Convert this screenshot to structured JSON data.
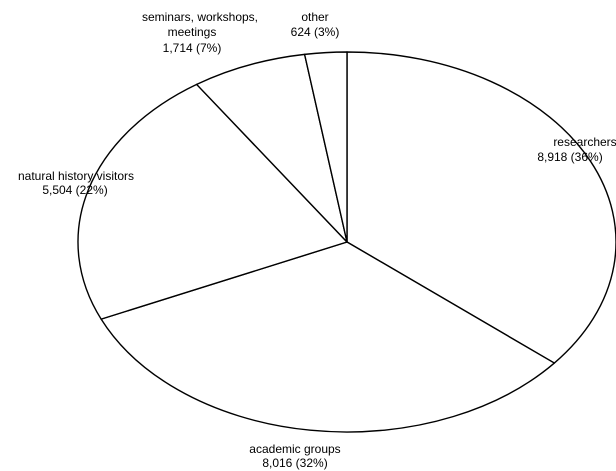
{
  "chart_data": {
    "type": "pie",
    "start_angle_deg": 90,
    "direction": "clockwise",
    "slices": [
      {
        "label": "researchers",
        "value": 8918,
        "value_text": "8,918 (36%)",
        "percent": 36
      },
      {
        "label": "academic groups",
        "value": 8016,
        "value_text": "8,016 (32%)",
        "percent": 32
      },
      {
        "label": "natural history visitors",
        "value": 5504,
        "value_text": "5,504 (22%)",
        "percent": 22
      },
      {
        "label": "seminars, workshops, meetings",
        "label_lines": [
          "seminars, workshops,",
          "meetings"
        ],
        "value": 1714,
        "value_text": "1,714  (7%)",
        "percent": 7
      },
      {
        "label": "other",
        "value": 624,
        "value_text": "624 (3%)",
        "percent": 3
      }
    ],
    "fill_color": "#ffffff",
    "stroke_color": "#000000"
  }
}
